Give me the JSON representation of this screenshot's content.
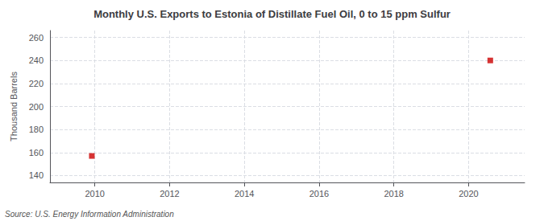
{
  "chart_data": {
    "type": "scatter",
    "title": "Monthly U.S. Exports to Estonia of Distillate Fuel Oil, 0 to 15 ppm Sulfur",
    "ylabel": "Thousand Barrels",
    "annotations": [
      "Source: U.S. Energy Information Administration"
    ],
    "x": [
      2009.92,
      2020.58
    ],
    "values": [
      157,
      240
    ],
    "color": "#cc0000",
    "marker": "square",
    "xlim": [
      2008.8,
      2021.5
    ],
    "xticks": [
      2010,
      2012,
      2014,
      2016,
      2018,
      2020
    ],
    "ylim": [
      134,
      266
    ],
    "yticks": [
      140,
      160,
      180,
      200,
      220,
      240,
      260
    ],
    "grid": true
  }
}
